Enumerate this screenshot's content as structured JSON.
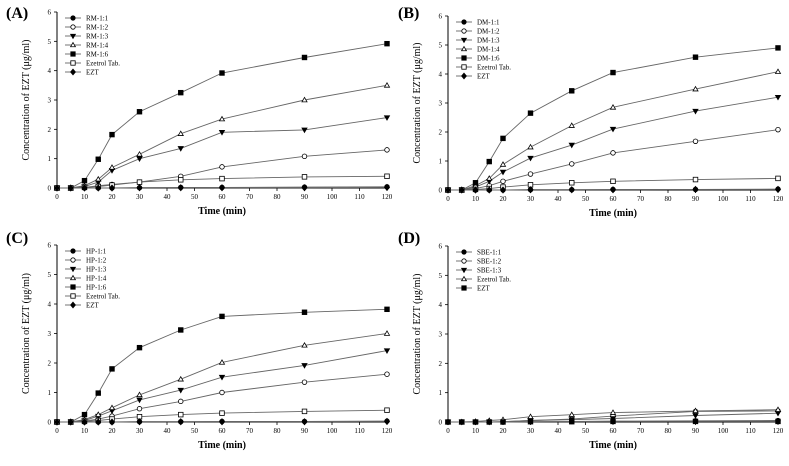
{
  "chart_data": [
    {
      "type": "line",
      "label": "(A)",
      "xlabel": "Time (min)",
      "ylabel": "Concentration of  EZT (μg/ml)",
      "xlim": [
        0,
        120
      ],
      "ylim": [
        0,
        6
      ],
      "xticks": [
        "0",
        "10",
        "20",
        "30",
        "40",
        "50",
        "60",
        "70",
        "80",
        "90",
        "100",
        "110",
        "120"
      ],
      "yticks": [
        "0",
        "1",
        "2",
        "3",
        "4",
        "5",
        "6"
      ],
      "legend_position": "top-left",
      "series": [
        {
          "name": "RM-1:1",
          "marker": "circle-filled",
          "x": [
            0,
            5,
            10,
            15,
            20,
            30,
            45,
            60,
            90,
            120
          ],
          "y": [
            0,
            0,
            0,
            0,
            0,
            0.01,
            0.02,
            0.02,
            0.03,
            0.04
          ]
        },
        {
          "name": "RM-1:2",
          "marker": "circle-open",
          "x": [
            0,
            5,
            10,
            15,
            20,
            30,
            45,
            60,
            90,
            120
          ],
          "y": [
            0,
            0,
            0.02,
            0.08,
            0.12,
            0.2,
            0.4,
            0.72,
            1.08,
            1.3
          ]
        },
        {
          "name": "RM-1:3",
          "marker": "triangle-down-filled",
          "x": [
            0,
            5,
            10,
            15,
            20,
            30,
            45,
            60,
            90,
            120
          ],
          "y": [
            0,
            0,
            0.05,
            0.2,
            0.6,
            1.0,
            1.35,
            1.9,
            1.98,
            2.4
          ]
        },
        {
          "name": "RM-1:4",
          "marker": "triangle-up-open",
          "x": [
            0,
            5,
            10,
            15,
            20,
            30,
            45,
            60,
            90,
            120
          ],
          "y": [
            0,
            0,
            0.08,
            0.3,
            0.7,
            1.15,
            1.85,
            2.35,
            3.0,
            3.5
          ]
        },
        {
          "name": "RM-1:6",
          "marker": "square-filled",
          "x": [
            0,
            5,
            10,
            15,
            20,
            30,
            45,
            60,
            90,
            120
          ],
          "y": [
            0,
            0,
            0.25,
            0.98,
            1.82,
            2.6,
            3.25,
            3.92,
            4.45,
            4.92
          ]
        },
        {
          "name": "Ezetrol Tab.",
          "marker": "square-open",
          "x": [
            0,
            5,
            10,
            15,
            20,
            30,
            45,
            60,
            90,
            120
          ],
          "y": [
            0,
            0,
            0.02,
            0.05,
            0.1,
            0.2,
            0.28,
            0.32,
            0.38,
            0.4
          ]
        },
        {
          "name": "EZT",
          "marker": "diamond-filled",
          "x": [
            0,
            5,
            10,
            15,
            20,
            30,
            45,
            60,
            90,
            120
          ],
          "y": [
            0,
            0,
            0,
            0,
            0,
            0.01,
            0.01,
            0.01,
            0.01,
            0.02
          ]
        }
      ]
    },
    {
      "type": "line",
      "label": "(B)",
      "xlabel": "Time (min)",
      "ylabel": "Concentration of  EZT (μg/ml)",
      "xlim": [
        0,
        120
      ],
      "ylim": [
        0,
        6
      ],
      "xticks": [
        "0",
        "10",
        "20",
        "30",
        "40",
        "50",
        "60",
        "70",
        "80",
        "90",
        "100",
        "110",
        "120"
      ],
      "yticks": [
        "0",
        "1",
        "2",
        "3",
        "4",
        "5",
        "6"
      ],
      "legend_position": "top-left",
      "series": [
        {
          "name": "DM-1:1",
          "marker": "circle-filled",
          "x": [
            0,
            5,
            10,
            15,
            20,
            30,
            45,
            60,
            90,
            120
          ],
          "y": [
            0,
            0,
            0,
            0,
            0,
            0.01,
            0.01,
            0.02,
            0.02,
            0.03
          ]
        },
        {
          "name": "DM-1:2",
          "marker": "circle-open",
          "x": [
            0,
            5,
            10,
            15,
            20,
            30,
            45,
            60,
            90,
            120
          ],
          "y": [
            0,
            0,
            0.05,
            0.15,
            0.3,
            0.55,
            0.9,
            1.28,
            1.68,
            2.08
          ]
        },
        {
          "name": "DM-1:3",
          "marker": "triangle-down-filled",
          "x": [
            0,
            5,
            10,
            15,
            20,
            30,
            45,
            60,
            90,
            120
          ],
          "y": [
            0,
            0,
            0.1,
            0.3,
            0.62,
            1.1,
            1.55,
            2.1,
            2.72,
            3.2
          ]
        },
        {
          "name": "DM-1:4",
          "marker": "triangle-up-open",
          "x": [
            0,
            5,
            10,
            15,
            20,
            30,
            45,
            60,
            90,
            120
          ],
          "y": [
            0,
            0,
            0.15,
            0.4,
            0.88,
            1.48,
            2.22,
            2.85,
            3.48,
            4.08
          ]
        },
        {
          "name": "DM-1:6",
          "marker": "square-filled",
          "x": [
            0,
            5,
            10,
            15,
            20,
            30,
            45,
            60,
            90,
            120
          ],
          "y": [
            0,
            0,
            0.25,
            0.98,
            1.78,
            2.65,
            3.42,
            4.05,
            4.58,
            4.9
          ]
        },
        {
          "name": "Ezetrol Tab.",
          "marker": "square-open",
          "x": [
            0,
            5,
            10,
            15,
            20,
            30,
            45,
            60,
            90,
            120
          ],
          "y": [
            0,
            0,
            0.02,
            0.05,
            0.1,
            0.18,
            0.25,
            0.3,
            0.36,
            0.4
          ]
        },
        {
          "name": "EZT",
          "marker": "diamond-filled",
          "x": [
            0,
            5,
            10,
            15,
            20,
            30,
            45,
            60,
            90,
            120
          ],
          "y": [
            0,
            0,
            0,
            0,
            0,
            0.01,
            0.01,
            0.01,
            0.02,
            0.02
          ]
        }
      ]
    },
    {
      "type": "line",
      "label": "(C)",
      "xlabel": "Time (min)",
      "ylabel": "Concentration of  EZT (μg/ml)",
      "xlim": [
        0,
        120
      ],
      "ylim": [
        0,
        6
      ],
      "xticks": [
        "0",
        "10",
        "20",
        "30",
        "40",
        "50",
        "60",
        "70",
        "80",
        "90",
        "100",
        "110",
        "120"
      ],
      "yticks": [
        "0",
        "1",
        "2",
        "3",
        "4",
        "5",
        "6"
      ],
      "legend_position": "top-left",
      "series": [
        {
          "name": "HP-1:1",
          "marker": "circle-filled",
          "x": [
            0,
            5,
            10,
            15,
            20,
            30,
            45,
            60,
            90,
            120
          ],
          "y": [
            0,
            0,
            0,
            0,
            0,
            0.01,
            0.01,
            0.02,
            0.02,
            0.03
          ]
        },
        {
          "name": "HP-1:2",
          "marker": "circle-open",
          "x": [
            0,
            5,
            10,
            15,
            20,
            30,
            45,
            60,
            90,
            120
          ],
          "y": [
            0,
            0,
            0.03,
            0.1,
            0.2,
            0.45,
            0.7,
            1.0,
            1.35,
            1.62
          ]
        },
        {
          "name": "HP-1:3",
          "marker": "triangle-down-filled",
          "x": [
            0,
            5,
            10,
            15,
            20,
            30,
            45,
            60,
            90,
            120
          ],
          "y": [
            0,
            0,
            0.05,
            0.2,
            0.38,
            0.75,
            1.08,
            1.52,
            1.92,
            2.42
          ]
        },
        {
          "name": "HP-1:4",
          "marker": "triangle-up-open",
          "x": [
            0,
            5,
            10,
            15,
            20,
            30,
            45,
            60,
            90,
            120
          ],
          "y": [
            0,
            0,
            0.08,
            0.25,
            0.48,
            0.92,
            1.45,
            2.02,
            2.6,
            3.0
          ]
        },
        {
          "name": "HP-1:6",
          "marker": "square-filled",
          "x": [
            0,
            5,
            10,
            15,
            20,
            30,
            45,
            60,
            90,
            120
          ],
          "y": [
            0,
            0,
            0.25,
            0.98,
            1.8,
            2.52,
            3.12,
            3.58,
            3.72,
            3.82
          ]
        },
        {
          "name": "Ezetrol Tab.",
          "marker": "square-open",
          "x": [
            0,
            5,
            10,
            15,
            20,
            30,
            45,
            60,
            90,
            120
          ],
          "y": [
            0,
            0,
            0.02,
            0.05,
            0.1,
            0.18,
            0.25,
            0.3,
            0.36,
            0.4
          ]
        },
        {
          "name": "EZT",
          "marker": "diamond-filled",
          "x": [
            0,
            5,
            10,
            15,
            20,
            30,
            45,
            60,
            90,
            120
          ],
          "y": [
            0,
            0,
            0,
            0,
            0,
            0.01,
            0.01,
            0.01,
            0.01,
            0.02
          ]
        }
      ]
    },
    {
      "type": "line",
      "label": "(D)",
      "xlabel": "Time (min)",
      "ylabel": "Concentration of  EZT (μg/ml)",
      "xlim": [
        0,
        120
      ],
      "ylim": [
        0,
        6
      ],
      "xticks": [
        "0",
        "10",
        "20",
        "30",
        "40",
        "50",
        "60",
        "70",
        "80",
        "90",
        "100",
        "110",
        "120"
      ],
      "yticks": [
        "0",
        "1",
        "2",
        "3",
        "4",
        "5",
        "6"
      ],
      "legend_position": "top-left",
      "series": [
        {
          "name": "SBE-1:1",
          "marker": "circle-filled",
          "x": [
            0,
            5,
            10,
            15,
            20,
            30,
            45,
            60,
            90,
            120
          ],
          "y": [
            0,
            0,
            0,
            0,
            0,
            0.01,
            0.02,
            0.03,
            0.04,
            0.05
          ]
        },
        {
          "name": "SBE-1:2",
          "marker": "circle-open",
          "x": [
            0,
            5,
            10,
            15,
            20,
            30,
            45,
            60,
            90,
            120
          ],
          "y": [
            0,
            0,
            0,
            0,
            0.01,
            0.05,
            0.1,
            0.2,
            0.36,
            0.38
          ]
        },
        {
          "name": "SBE-1:3",
          "marker": "triangle-down-filled",
          "x": [
            0,
            5,
            10,
            15,
            20,
            30,
            45,
            60,
            90,
            120
          ],
          "y": [
            0,
            0,
            0,
            0,
            0.01,
            0.05,
            0.08,
            0.12,
            0.22,
            0.3
          ]
        },
        {
          "name": "Ezetrol Tab.",
          "marker": "triangle-up-open",
          "x": [
            0,
            5,
            10,
            15,
            20,
            30,
            45,
            60,
            90,
            120
          ],
          "y": [
            0,
            0,
            0.02,
            0.05,
            0.08,
            0.18,
            0.25,
            0.32,
            0.38,
            0.42
          ]
        },
        {
          "name": "EZT",
          "marker": "square-filled",
          "x": [
            0,
            5,
            10,
            15,
            20,
            30,
            45,
            60,
            90,
            120
          ],
          "y": [
            0,
            0,
            0,
            0,
            0,
            0.01,
            0.01,
            0.02,
            0.02,
            0.02
          ]
        }
      ]
    }
  ]
}
